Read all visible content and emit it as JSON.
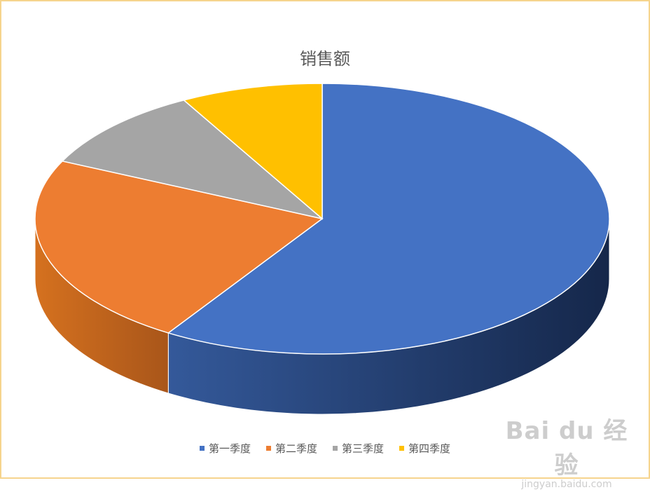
{
  "chart_data": {
    "type": "pie",
    "title": "销售额",
    "categories": [
      "第一季度",
      "第二季度",
      "第三季度",
      "第四季度"
    ],
    "values": [
      59,
      23,
      10,
      8
    ],
    "colors": [
      "#4472c4",
      "#ed7d31",
      "#a5a5a5",
      "#ffc000"
    ],
    "legend_position": "bottom",
    "style": "3d"
  },
  "watermark": {
    "main": "Bai du 经验",
    "sub": "jingyan.baidu.com"
  }
}
